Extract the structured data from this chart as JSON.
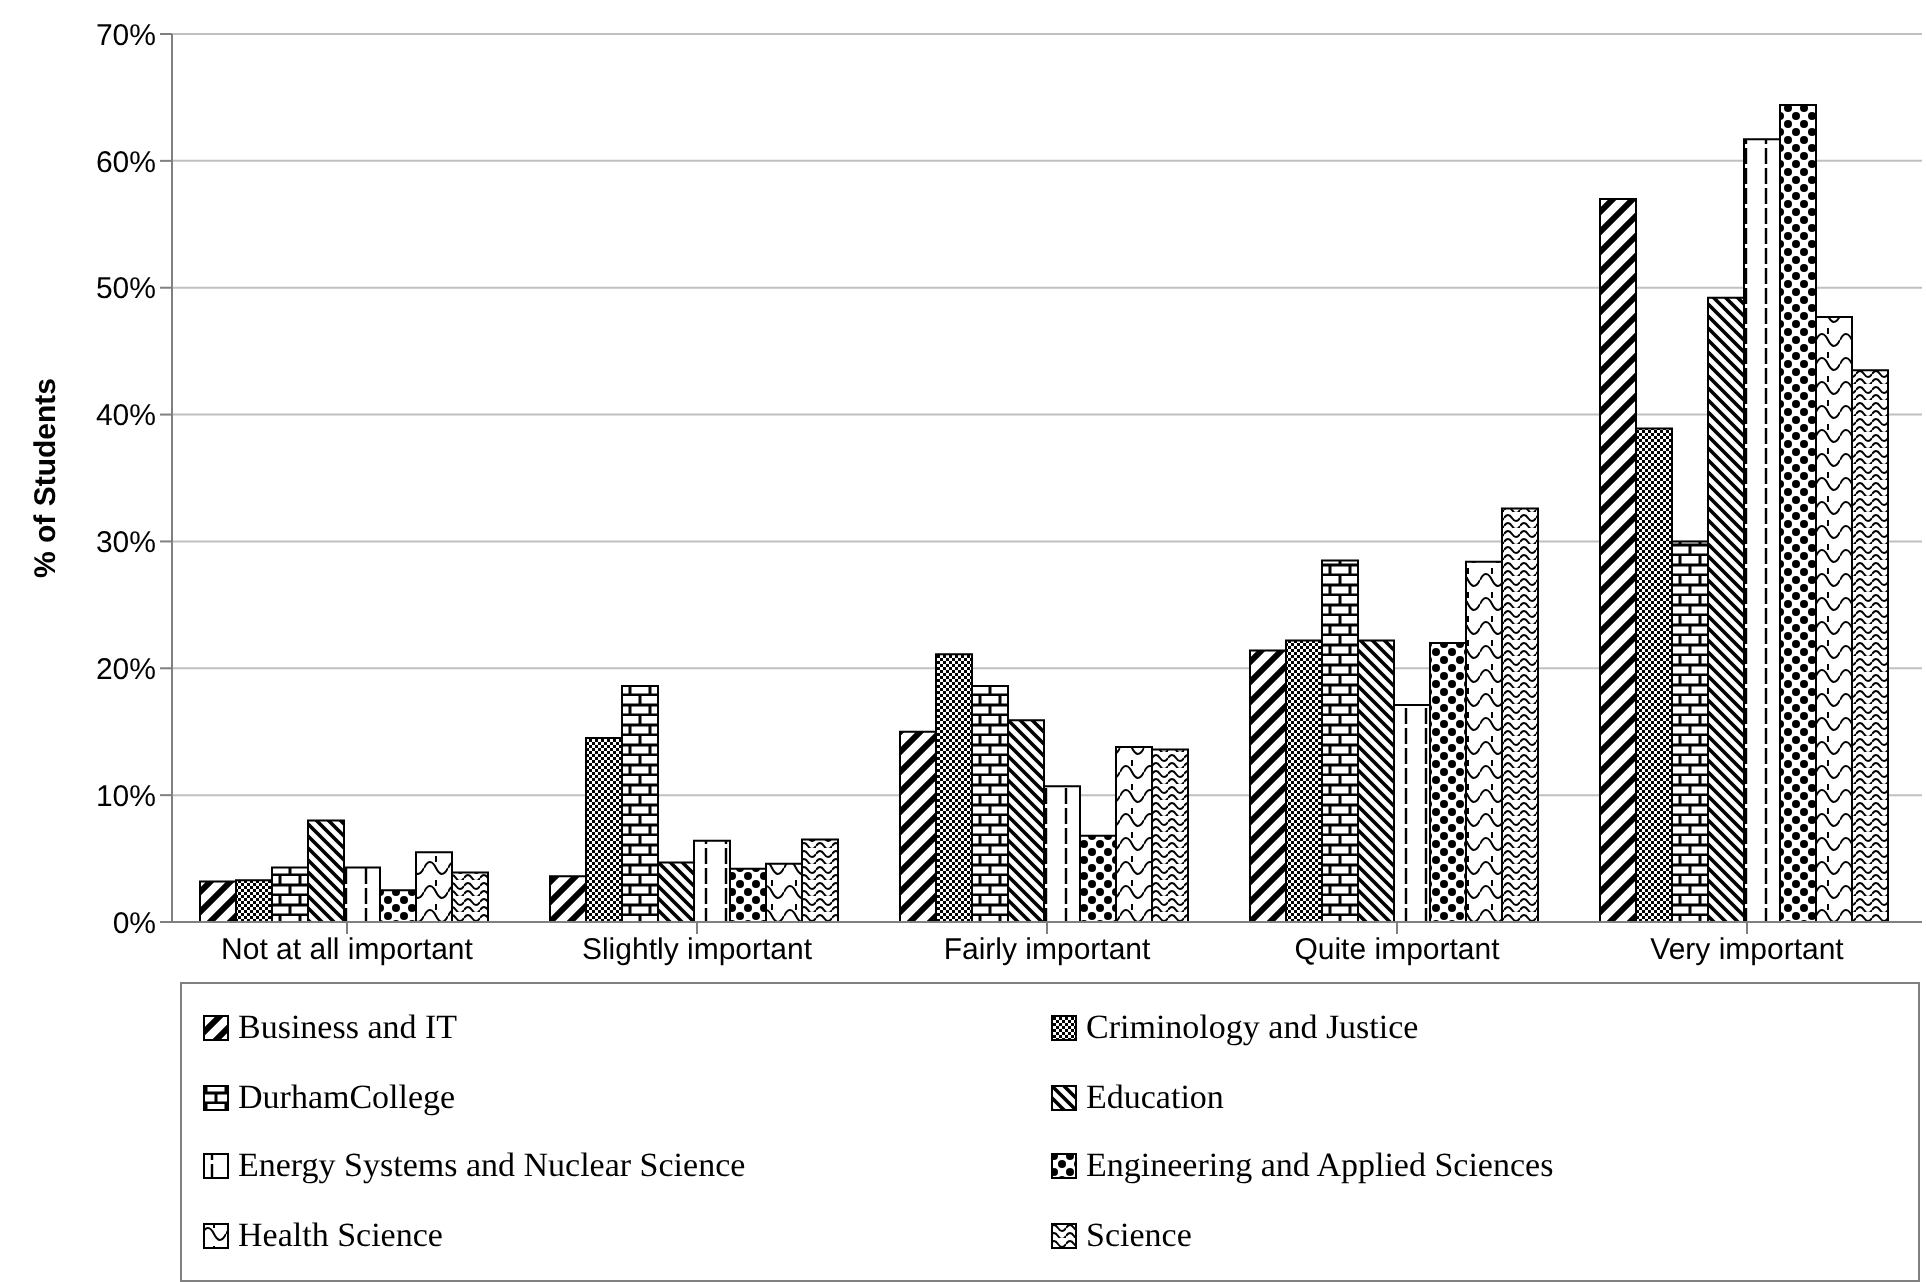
{
  "chart_data": {
    "type": "bar",
    "ylabel": "% of Students",
    "categories": [
      "Not at all important",
      "Slightly important",
      "Fairly important",
      "Quite important",
      "Very important"
    ],
    "ylim": [
      0,
      70
    ],
    "yticks": [
      {
        "value": 0,
        "label": "0%"
      },
      {
        "value": 10,
        "label": "10%"
      },
      {
        "value": 20,
        "label": "20%"
      },
      {
        "value": 30,
        "label": "30%"
      },
      {
        "value": 40,
        "label": "40%"
      },
      {
        "value": 50,
        "label": "50%"
      },
      {
        "value": 60,
        "label": "60%"
      },
      {
        "value": 70,
        "label": "70%"
      }
    ],
    "grid": "y",
    "legend": "bottom",
    "series": [
      {
        "name": "Business and IT",
        "color": "#000000",
        "values": [
          3.2,
          3.6,
          15.0,
          21.4,
          57.0
        ]
      },
      {
        "name": "Criminology and Justice",
        "color": "#000000",
        "values": [
          3.3,
          14.5,
          21.1,
          22.2,
          38.9
        ]
      },
      {
        "name": "DurhamCollege",
        "color": "#000000",
        "values": [
          4.3,
          18.6,
          18.6,
          28.5,
          30.0
        ]
      },
      {
        "name": "Education",
        "color": "#000000",
        "values": [
          8.0,
          4.7,
          15.9,
          22.2,
          49.2
        ]
      },
      {
        "name": "Energy Systems and Nuclear Science",
        "color": "#000000",
        "values": [
          4.3,
          6.4,
          10.7,
          17.1,
          61.7
        ]
      },
      {
        "name": "Engineering and Applied Sciences",
        "color": "#000000",
        "values": [
          2.5,
          4.2,
          6.8,
          22.0,
          64.4
        ]
      },
      {
        "name": "Health Science",
        "color": "#000000",
        "values": [
          5.5,
          4.6,
          13.8,
          28.4,
          47.7
        ]
      },
      {
        "name": "Science",
        "color": "#000000",
        "values": [
          3.9,
          6.5,
          13.6,
          32.6,
          43.5
        ]
      }
    ]
  }
}
